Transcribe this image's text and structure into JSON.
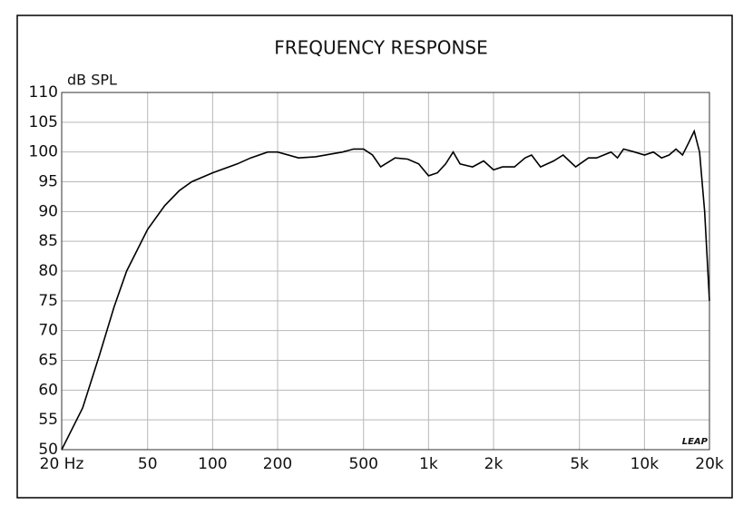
{
  "chart_data": {
    "type": "line",
    "title": "FREQUENCY RESPONSE",
    "y_label": "dB SPL",
    "annotation": "LEAP",
    "log_x": true,
    "grid": true,
    "xlim": [
      20,
      20000
    ],
    "ylim": [
      50,
      110
    ],
    "xticks": [
      {
        "value": 20,
        "label": "20 Hz"
      },
      50,
      100,
      200,
      500,
      {
        "value": 1000,
        "label": "1k"
      },
      {
        "value": 2000,
        "label": "2k"
      },
      {
        "value": 5000,
        "label": "5k"
      },
      {
        "value": 10000,
        "label": "10k"
      },
      {
        "value": 20000,
        "label": "20k"
      }
    ],
    "yticks": [
      50,
      55,
      60,
      65,
      70,
      75,
      80,
      85,
      90,
      95,
      100,
      105,
      110
    ],
    "series": [
      {
        "color": "#000000",
        "x": [
          20,
          25,
          30,
          35,
          40,
          50,
          60,
          70,
          80,
          100,
          130,
          150,
          180,
          200,
          250,
          300,
          400,
          450,
          500,
          550,
          600,
          700,
          800,
          900,
          1000,
          1100,
          1200,
          1300,
          1400,
          1600,
          1800,
          2000,
          2200,
          2500,
          2800,
          3000,
          3300,
          3800,
          4200,
          4800,
          5500,
          6000,
          7000,
          7500,
          8000,
          9000,
          10000,
          11000,
          12000,
          13000,
          14000,
          15000,
          16000,
          17000,
          18000,
          19000,
          20000
        ],
        "values": [
          50,
          57,
          66,
          74,
          80,
          87,
          91,
          93.5,
          95,
          96.5,
          98,
          99,
          100,
          100,
          99,
          99.2,
          100,
          100.5,
          100.5,
          99.5,
          97.5,
          99,
          98.8,
          98,
          96,
          96.5,
          98,
          100,
          98,
          97.5,
          98.5,
          97,
          97.5,
          97.5,
          99,
          99.5,
          97.5,
          98.5,
          99.5,
          97.5,
          99,
          99,
          100,
          99,
          100.5,
          100,
          99.5,
          100,
          99,
          99.5,
          100.5,
          99.5,
          101.5,
          103.5,
          100,
          90,
          75
        ]
      }
    ]
  }
}
